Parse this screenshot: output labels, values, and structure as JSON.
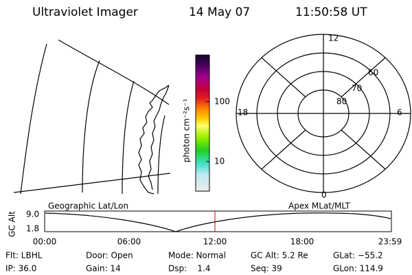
{
  "header": {
    "title": "Ultraviolet Imager",
    "date": "14 May 07",
    "time": "11:50:58 UT"
  },
  "colorbar": {
    "label": "photon cm⁻²s⁻¹",
    "ticks": [
      "100",
      "10"
    ]
  },
  "polar": {
    "labels": [
      "12",
      "6",
      "18",
      "0",
      "60",
      "70",
      "80"
    ]
  },
  "timeline": {
    "ylabel": "GC Alt",
    "yticks": [
      "9.0",
      "1.8"
    ],
    "left_label": "Geographic Lat/Lon",
    "right_label": "Apex MLat/MLT",
    "xticks": [
      "00:00",
      "06:00",
      "12:00",
      "18:00",
      "23:59"
    ]
  },
  "info": {
    "rows": [
      [
        "Flt: LBHL",
        "Door: Open",
        "Mode: Normal",
        "GC Alt: 5.2 Re",
        "GLat: −55.2"
      ],
      [
        "IP: 36.0",
        "Gain: 14",
        "Dsp:    1.4",
        "Seq: 39",
        "GLon: 114.9"
      ]
    ]
  }
}
